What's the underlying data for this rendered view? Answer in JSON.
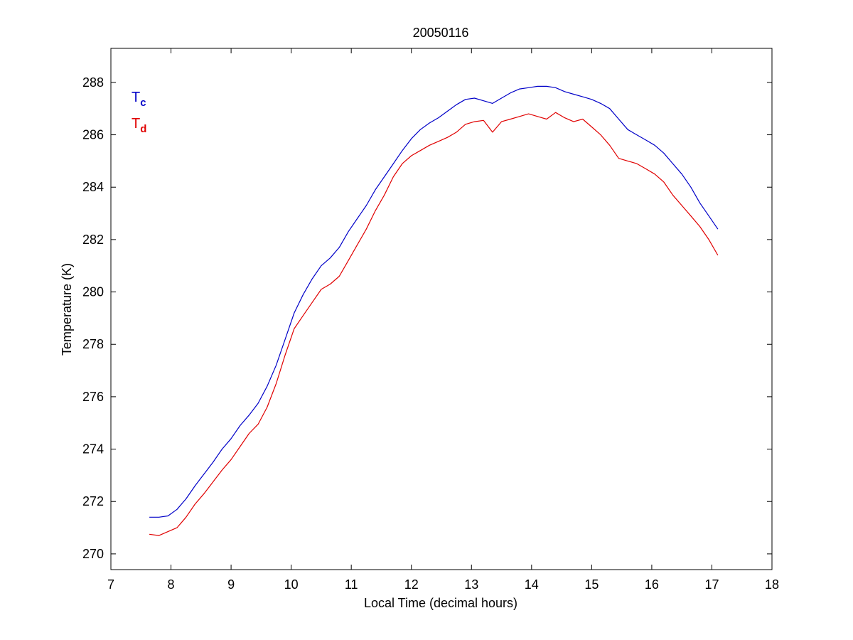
{
  "chart_data": {
    "type": "line",
    "title": "20050116",
    "xlabel": "Local Time (decimal hours)",
    "ylabel": "Temperature (K)",
    "xlim": [
      7,
      18
    ],
    "ylim": [
      269.4,
      289.3
    ],
    "xticks": [
      7,
      8,
      9,
      10,
      11,
      12,
      13,
      14,
      15,
      16,
      17,
      18
    ],
    "yticks": [
      270,
      272,
      274,
      276,
      278,
      280,
      282,
      284,
      286,
      288
    ],
    "grid": false,
    "legend_position": "top-left",
    "series": [
      {
        "name": "T",
        "subscript": "c",
        "color": "#0000c8",
        "x": [
          7.64,
          7.8,
          7.95,
          8.1,
          8.25,
          8.4,
          8.55,
          8.7,
          8.85,
          9.0,
          9.15,
          9.3,
          9.45,
          9.6,
          9.75,
          9.9,
          10.05,
          10.2,
          10.35,
          10.5,
          10.65,
          10.8,
          10.95,
          11.1,
          11.25,
          11.4,
          11.55,
          11.7,
          11.85,
          12.0,
          12.15,
          12.3,
          12.45,
          12.6,
          12.75,
          12.9,
          13.05,
          13.2,
          13.35,
          13.5,
          13.65,
          13.8,
          13.95,
          14.1,
          14.25,
          14.4,
          14.55,
          14.7,
          14.85,
          15.0,
          15.15,
          15.3,
          15.45,
          15.6,
          15.75,
          15.9,
          16.05,
          16.2,
          16.35,
          16.5,
          16.65,
          16.8,
          16.95,
          17.1
        ],
        "y": [
          271.4,
          271.4,
          271.45,
          271.7,
          272.1,
          272.6,
          273.05,
          273.5,
          274.0,
          274.4,
          274.9,
          275.3,
          275.75,
          276.4,
          277.2,
          278.2,
          279.2,
          279.9,
          280.5,
          281.0,
          281.3,
          281.7,
          282.3,
          282.8,
          283.3,
          283.9,
          284.4,
          284.9,
          285.4,
          285.85,
          286.2,
          286.45,
          286.65,
          286.9,
          287.15,
          287.35,
          287.4,
          287.3,
          287.2,
          287.4,
          287.6,
          287.75,
          287.8,
          287.85,
          287.85,
          287.8,
          287.65,
          287.55,
          287.45,
          287.35,
          287.2,
          287.0,
          286.6,
          286.2,
          286.0,
          285.8,
          285.6,
          285.3,
          284.9,
          284.5,
          284.0,
          283.4,
          282.9,
          282.4
        ]
      },
      {
        "name": "T",
        "subscript": "d",
        "color": "#e00000",
        "x": [
          7.64,
          7.8,
          7.95,
          8.1,
          8.25,
          8.4,
          8.55,
          8.7,
          8.85,
          9.0,
          9.15,
          9.3,
          9.45,
          9.6,
          9.75,
          9.9,
          10.05,
          10.2,
          10.35,
          10.5,
          10.65,
          10.8,
          10.95,
          11.1,
          11.25,
          11.4,
          11.55,
          11.7,
          11.85,
          12.0,
          12.15,
          12.3,
          12.45,
          12.6,
          12.75,
          12.9,
          13.05,
          13.2,
          13.35,
          13.5,
          13.65,
          13.8,
          13.95,
          14.1,
          14.25,
          14.4,
          14.55,
          14.7,
          14.85,
          15.0,
          15.15,
          15.3,
          15.45,
          15.6,
          15.75,
          15.9,
          16.05,
          16.2,
          16.35,
          16.5,
          16.65,
          16.8,
          16.95,
          17.1
        ],
        "y": [
          270.75,
          270.7,
          270.85,
          271.0,
          271.4,
          271.9,
          272.3,
          272.75,
          273.2,
          273.6,
          274.1,
          274.6,
          274.95,
          275.6,
          276.5,
          277.6,
          278.6,
          279.1,
          279.6,
          280.1,
          280.3,
          280.6,
          281.2,
          281.8,
          282.4,
          283.1,
          283.7,
          284.4,
          284.9,
          285.2,
          285.4,
          285.6,
          285.75,
          285.9,
          286.1,
          286.4,
          286.5,
          286.55,
          286.1,
          286.5,
          286.6,
          286.7,
          286.8,
          286.7,
          286.6,
          286.85,
          286.65,
          286.5,
          286.6,
          286.3,
          286.0,
          285.6,
          285.1,
          285.0,
          284.9,
          284.7,
          284.5,
          284.2,
          283.7,
          283.3,
          282.9,
          282.5,
          282.0,
          281.4
        ]
      }
    ]
  }
}
